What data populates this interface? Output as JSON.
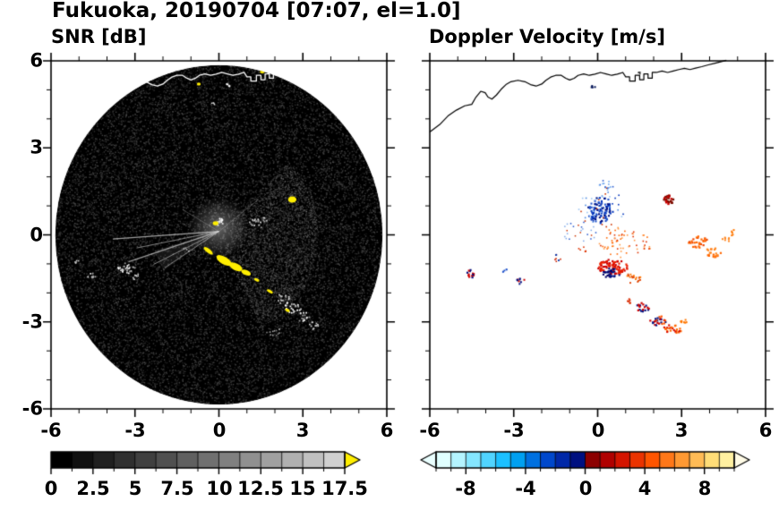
{
  "title": "Fukuoka, 20190704 [07:07, el=1.0]",
  "observation": {
    "station": "Fukuoka",
    "date": "20190704",
    "time": "07:07",
    "elevation_deg": 1.0
  },
  "panels": {
    "snr": {
      "title": "SNR [dB]",
      "x_ticks": [
        "-6",
        "-3",
        "0",
        "3",
        "6"
      ],
      "y_ticks": [
        "6",
        "3",
        "0",
        "-3",
        "-6"
      ]
    },
    "velocity": {
      "title": "Doppler Velocity [m/s]",
      "x_ticks": [
        "-6",
        "-3",
        "0",
        "3",
        "6"
      ]
    }
  },
  "colorbars": {
    "snr": {
      "tick_labels": [
        "0",
        "2.5",
        "5",
        "7.5",
        "10",
        "12.5",
        "15",
        "17.5"
      ],
      "min": 0,
      "max": 17.5,
      "segments": [
        "#000000",
        "#101010",
        "#202020",
        "#303030",
        "#404040",
        "#505050",
        "#606060",
        "#707070",
        "#808080",
        "#909090",
        "#a0a0a0",
        "#b0b0b0",
        "#c0c0c0",
        "#d0d0d0"
      ],
      "over_color": "#ffee00"
    },
    "velocity": {
      "tick_labels": [
        "-8",
        "-4",
        "0",
        "4",
        "8"
      ],
      "min": -10,
      "max": 10,
      "segments": [
        "#e0ffff",
        "#b4f4ff",
        "#84e6ff",
        "#50d4ff",
        "#1cc0ff",
        "#00a0f0",
        "#0070e0",
        "#0048cc",
        "#0028a8",
        "#001080",
        "#8c0000",
        "#b00000",
        "#d41400",
        "#ea3300",
        "#ff5500",
        "#ff7718",
        "#ff9933",
        "#ffbb55",
        "#ffdd77",
        "#fff0a0"
      ],
      "under_color": "#eaffff",
      "over_color": "#fffbe6"
    }
  },
  "coastline": [
    [
      -6.0,
      3.55
    ],
    [
      -5.65,
      3.8
    ],
    [
      -5.35,
      4.1
    ],
    [
      -5.05,
      4.3
    ],
    [
      -4.75,
      4.45
    ],
    [
      -4.5,
      4.5
    ],
    [
      -4.35,
      4.75
    ],
    [
      -4.18,
      4.95
    ],
    [
      -4.02,
      4.9
    ],
    [
      -3.92,
      4.75
    ],
    [
      -3.78,
      4.68
    ],
    [
      -3.62,
      4.82
    ],
    [
      -3.45,
      5.02
    ],
    [
      -3.28,
      5.18
    ],
    [
      -3.1,
      5.28
    ],
    [
      -2.85,
      5.33
    ],
    [
      -2.6,
      5.28
    ],
    [
      -2.4,
      5.18
    ],
    [
      -2.2,
      5.13
    ],
    [
      -2.0,
      5.2
    ],
    [
      -1.85,
      5.33
    ],
    [
      -1.68,
      5.44
    ],
    [
      -1.5,
      5.5
    ],
    [
      -1.3,
      5.5
    ],
    [
      -1.14,
      5.4
    ],
    [
      -1.0,
      5.34
    ],
    [
      -0.84,
      5.4
    ],
    [
      -0.7,
      5.5
    ],
    [
      -0.5,
      5.55
    ],
    [
      -0.3,
      5.5
    ],
    [
      -0.1,
      5.54
    ],
    [
      0.1,
      5.6
    ],
    [
      0.3,
      5.55
    ],
    [
      0.5,
      5.5
    ],
    [
      0.7,
      5.54
    ],
    [
      0.9,
      5.6
    ],
    [
      1.0,
      5.45
    ],
    [
      1.14,
      5.45
    ],
    [
      1.14,
      5.3
    ],
    [
      1.34,
      5.3
    ],
    [
      1.34,
      5.5
    ],
    [
      1.5,
      5.5
    ],
    [
      1.5,
      5.35
    ],
    [
      1.65,
      5.35
    ],
    [
      1.65,
      5.55
    ],
    [
      1.8,
      5.55
    ],
    [
      1.8,
      5.4
    ],
    [
      1.95,
      5.4
    ],
    [
      1.95,
      5.6
    ],
    [
      2.1,
      5.6
    ],
    [
      2.3,
      5.65
    ],
    [
      2.5,
      5.6
    ],
    [
      2.7,
      5.65
    ],
    [
      2.9,
      5.7
    ],
    [
      3.1,
      5.74
    ],
    [
      3.3,
      5.7
    ],
    [
      3.5,
      5.75
    ],
    [
      3.72,
      5.8
    ],
    [
      3.95,
      5.86
    ],
    [
      4.2,
      5.92
    ],
    [
      4.45,
      5.98
    ],
    [
      4.6,
      6.02
    ]
  ],
  "chart_data": [
    {
      "type": "heatmap",
      "title": "SNR [dB]",
      "xlim": [
        -6,
        6
      ],
      "ylim": [
        -6,
        6
      ],
      "x_ticks": [
        -6,
        -3,
        0,
        3,
        6
      ],
      "y_ticks": [
        6,
        3,
        0,
        -3,
        -6
      ],
      "grid": false,
      "colorbar": {
        "range": [
          0,
          17.5
        ],
        "ticks": [
          0,
          2.5,
          5,
          7.5,
          10,
          12.5,
          15,
          17.5
        ],
        "colormap": "black-to-gray",
        "over_color": "#ffee00"
      },
      "scan_disk": {
        "center": [
          0,
          0
        ],
        "radius": 5.85,
        "color": "#000000"
      },
      "high_snr_color": "#ffee00",
      "high_snr_cells": [
        {
          "x": -0.12,
          "y": 0.4,
          "rx": 0.1,
          "ry": 0.07,
          "rot": 0
        },
        {
          "x": -0.38,
          "y": -0.55,
          "rx": 0.2,
          "ry": 0.07,
          "rot": -38
        },
        {
          "x": 0.18,
          "y": -0.88,
          "rx": 0.3,
          "ry": 0.13,
          "rot": -30
        },
        {
          "x": 0.6,
          "y": -1.1,
          "rx": 0.26,
          "ry": 0.12,
          "rot": -26
        },
        {
          "x": 0.97,
          "y": -1.3,
          "rx": 0.18,
          "ry": 0.09,
          "rot": -22
        },
        {
          "x": 1.35,
          "y": -1.55,
          "rx": 0.1,
          "ry": 0.05,
          "rot": -22
        },
        {
          "x": 1.82,
          "y": -1.95,
          "rx": 0.12,
          "ry": 0.05,
          "rot": -30
        },
        {
          "x": 2.45,
          "y": -2.6,
          "rx": 0.09,
          "ry": 0.05,
          "rot": -25
        },
        {
          "x": 2.62,
          "y": 1.22,
          "rx": 0.15,
          "ry": 0.11,
          "rot": 0
        },
        {
          "x": -0.72,
          "y": 5.2,
          "rx": 0.07,
          "ry": 0.05,
          "rot": 0
        },
        {
          "x": 1.55,
          "y": 5.62,
          "rx": 0.09,
          "ry": 0.05,
          "rot": 0
        }
      ],
      "echo_clusters": [
        {
          "cx": 0.02,
          "cy": 0.45,
          "rx": 0.15,
          "ry": 0.14,
          "n": 12,
          "size": 1.8,
          "colors": [
            "#ffffff",
            "#dddddd"
          ]
        },
        {
          "cx": 1.4,
          "cy": 0.45,
          "rx": 0.32,
          "ry": 0.22,
          "n": 22,
          "size": 1.7,
          "colors": [
            "#e0e0e0",
            "#9a9a9a",
            "#c0c0c0"
          ]
        },
        {
          "cx": -3.3,
          "cy": -1.15,
          "rx": 0.32,
          "ry": 0.2,
          "n": 26,
          "size": 1.8,
          "colors": [
            "#ffffff",
            "#cccccc",
            "#999999"
          ]
        },
        {
          "cx": -2.95,
          "cy": -1.45,
          "rx": 0.15,
          "ry": 0.1,
          "n": 8,
          "size": 1.6,
          "colors": [
            "#cfcfcf"
          ]
        },
        {
          "cx": -4.55,
          "cy": -1.4,
          "rx": 0.16,
          "ry": 0.1,
          "n": 9,
          "size": 1.7,
          "colors": [
            "#eeeeee",
            "#aaaaaa"
          ]
        },
        {
          "cx": -5.1,
          "cy": -0.9,
          "rx": 0.1,
          "ry": 0.08,
          "n": 5,
          "size": 1.6,
          "colors": [
            "#cccccc"
          ]
        },
        {
          "cx": 2.3,
          "cy": -2.2,
          "rx": 0.26,
          "ry": 0.18,
          "n": 16,
          "size": 1.7,
          "colors": [
            "#cccccc",
            "#8a8a8a"
          ]
        },
        {
          "cx": 2.65,
          "cy": -2.5,
          "rx": 0.3,
          "ry": 0.2,
          "n": 22,
          "size": 1.8,
          "colors": [
            "#ffffff",
            "#bbbbbb"
          ]
        },
        {
          "cx": 3.05,
          "cy": -2.85,
          "rx": 0.26,
          "ry": 0.18,
          "n": 16,
          "size": 1.8,
          "colors": [
            "#eeeeee",
            "#9a9a9a"
          ]
        },
        {
          "cx": 3.38,
          "cy": -3.15,
          "rx": 0.2,
          "ry": 0.14,
          "n": 11,
          "size": 1.7,
          "colors": [
            "#cccccc"
          ]
        },
        {
          "cx": 1.95,
          "cy": -3.35,
          "rx": 0.3,
          "ry": 0.14,
          "n": 12,
          "size": 1.6,
          "colors": [
            "#a8a8a8",
            "#787878"
          ]
        },
        {
          "cx": 0.3,
          "cy": 5.15,
          "rx": 0.1,
          "ry": 0.06,
          "n": 6,
          "size": 1.6,
          "colors": [
            "#ffffff"
          ]
        },
        {
          "cx": -0.2,
          "cy": 4.5,
          "rx": 0.08,
          "ry": 0.06,
          "n": 4,
          "size": 1.5,
          "colors": [
            "#dddddd"
          ]
        },
        {
          "cx": -1.15,
          "cy": -0.5,
          "rx": 0.12,
          "ry": 0.1,
          "n": 6,
          "size": 1.5,
          "colors": [
            "#ababab"
          ]
        }
      ],
      "beam_streaks": [
        {
          "a": 184,
          "l": 3.8,
          "w": 1.2,
          "al": 0.75
        },
        {
          "a": 191,
          "l": 3.0,
          "w": 1.0,
          "al": 0.6
        },
        {
          "a": 198,
          "l": 3.4,
          "w": 1.4,
          "al": 0.7
        },
        {
          "a": 206,
          "l": 2.6,
          "w": 1.0,
          "al": 0.6
        },
        {
          "a": 213,
          "l": 2.3,
          "w": 1.0,
          "al": 0.55
        },
        {
          "a": 38,
          "l": 1.8,
          "w": 1.0,
          "al": 0.3
        },
        {
          "a": 150,
          "l": 1.5,
          "w": 1.0,
          "al": 0.3
        }
      ]
    },
    {
      "type": "scatter",
      "title": "Doppler Velocity [m/s]",
      "xlim": [
        -6,
        6
      ],
      "ylim": [
        -6,
        6
      ],
      "x_ticks": [
        -6,
        -3,
        0,
        3,
        6
      ],
      "y_ticks": [
        6,
        3,
        0,
        -3,
        -6
      ],
      "grid": false,
      "colorbar": {
        "range": [
          -10,
          10
        ],
        "ticks": [
          -8,
          -4,
          0,
          4,
          8
        ],
        "colormap": "cyan-blue-navy / darkred-red-orange-yellow"
      },
      "velocity_clusters": [
        {
          "cx": 0.1,
          "cy": 0.85,
          "rx": 0.45,
          "ry": 0.48,
          "n": 95,
          "size": 2.1,
          "colors": [
            "#001080",
            "#0033bb",
            "#2255cc"
          ]
        },
        {
          "cx": 0.15,
          "cy": 0.95,
          "rx": 0.85,
          "ry": 0.7,
          "n": 40,
          "size": 1.6,
          "colors": [
            "#4d8ae0",
            "#9cc6f5",
            "#cc3300",
            "#0033bb"
          ]
        },
        {
          "cx": 0.3,
          "cy": 1.65,
          "rx": 0.35,
          "ry": 0.25,
          "n": 14,
          "size": 1.6,
          "colors": [
            "#6aa5ef",
            "#2255cc"
          ]
        },
        {
          "cx": -0.7,
          "cy": 0.1,
          "rx": 0.7,
          "ry": 0.35,
          "n": 24,
          "size": 1.5,
          "colors": [
            "#2255cc",
            "#7fa8e8",
            "#cc3300"
          ]
        },
        {
          "cx": 1.0,
          "cy": -0.25,
          "rx": 0.95,
          "ry": 0.55,
          "n": 65,
          "size": 1.6,
          "colors": [
            "#ff6600",
            "#e03300",
            "#ff9944"
          ]
        },
        {
          "cx": 0.55,
          "cy": -1.1,
          "rx": 0.58,
          "ry": 0.26,
          "n": 85,
          "size": 2.2,
          "colors": [
            "#cc0000",
            "#ee2200"
          ]
        },
        {
          "cx": 0.45,
          "cy": -1.32,
          "rx": 0.36,
          "ry": 0.16,
          "n": 30,
          "size": 2.1,
          "colors": [
            "#001080",
            "#000066"
          ]
        },
        {
          "cx": 1.25,
          "cy": -1.5,
          "rx": 0.3,
          "ry": 0.18,
          "n": 18,
          "size": 1.9,
          "colors": [
            "#ff7700",
            "#e04400"
          ]
        },
        {
          "cx": 2.55,
          "cy": 1.2,
          "rx": 0.22,
          "ry": 0.17,
          "n": 28,
          "size": 2.4,
          "colors": [
            "#cc0000",
            "#7a0e00"
          ]
        },
        {
          "cx": 3.6,
          "cy": -0.25,
          "rx": 0.36,
          "ry": 0.2,
          "n": 28,
          "size": 2.2,
          "colors": [
            "#ff6600",
            "#ee4400"
          ]
        },
        {
          "cx": 4.15,
          "cy": -0.6,
          "rx": 0.3,
          "ry": 0.17,
          "n": 20,
          "size": 2.2,
          "colors": [
            "#ff6600",
            "#ff8822"
          ]
        },
        {
          "cx": 4.6,
          "cy": -0.18,
          "rx": 0.15,
          "ry": 0.1,
          "n": 7,
          "size": 2.0,
          "colors": [
            "#ff8822"
          ]
        },
        {
          "cx": 4.85,
          "cy": 0.05,
          "rx": 0.1,
          "ry": 0.12,
          "n": 5,
          "size": 2.0,
          "colors": [
            "#ff7700"
          ]
        },
        {
          "cx": 1.6,
          "cy": -2.5,
          "rx": 0.26,
          "ry": 0.15,
          "n": 18,
          "size": 2.2,
          "colors": [
            "#cc0000",
            "#001080"
          ]
        },
        {
          "cx": 1.15,
          "cy": -2.28,
          "rx": 0.12,
          "ry": 0.08,
          "n": 6,
          "size": 1.9,
          "colors": [
            "#d92b00"
          ]
        },
        {
          "cx": 2.15,
          "cy": -2.95,
          "rx": 0.3,
          "ry": 0.17,
          "n": 24,
          "size": 2.2,
          "colors": [
            "#cc0000",
            "#001080",
            "#ff5500"
          ]
        },
        {
          "cx": 2.7,
          "cy": -3.25,
          "rx": 0.36,
          "ry": 0.15,
          "n": 24,
          "size": 2.2,
          "colors": [
            "#dd1100",
            "#ff6600"
          ]
        },
        {
          "cx": 3.1,
          "cy": -3.0,
          "rx": 0.15,
          "ry": 0.1,
          "n": 8,
          "size": 2.0,
          "colors": [
            "#ff7700"
          ]
        },
        {
          "cx": -4.55,
          "cy": -1.35,
          "rx": 0.2,
          "ry": 0.14,
          "n": 13,
          "size": 2.2,
          "colors": [
            "#cc0000",
            "#001080"
          ]
        },
        {
          "cx": -2.75,
          "cy": -1.6,
          "rx": 0.15,
          "ry": 0.12,
          "n": 9,
          "size": 2.0,
          "colors": [
            "#001080",
            "#cc0000"
          ]
        },
        {
          "cx": -3.35,
          "cy": -1.2,
          "rx": 0.1,
          "ry": 0.09,
          "n": 5,
          "size": 1.8,
          "colors": [
            "#2255cc"
          ]
        },
        {
          "cx": -1.5,
          "cy": -0.75,
          "rx": 0.3,
          "ry": 0.18,
          "n": 9,
          "size": 1.6,
          "colors": [
            "#cc2200",
            "#0033aa"
          ]
        },
        {
          "cx": -0.55,
          "cy": -0.5,
          "rx": 0.16,
          "ry": 0.1,
          "n": 6,
          "size": 1.6,
          "colors": [
            "#dd3300"
          ]
        },
        {
          "cx": -0.15,
          "cy": 5.1,
          "rx": 0.08,
          "ry": 0.07,
          "n": 4,
          "size": 2.0,
          "colors": [
            "#001155"
          ]
        },
        {
          "cx": 1.55,
          "cy": 5.6,
          "rx": 0.1,
          "ry": 0.06,
          "n": 4,
          "size": 1.6,
          "colors": [
            "#333333"
          ]
        }
      ]
    }
  ]
}
